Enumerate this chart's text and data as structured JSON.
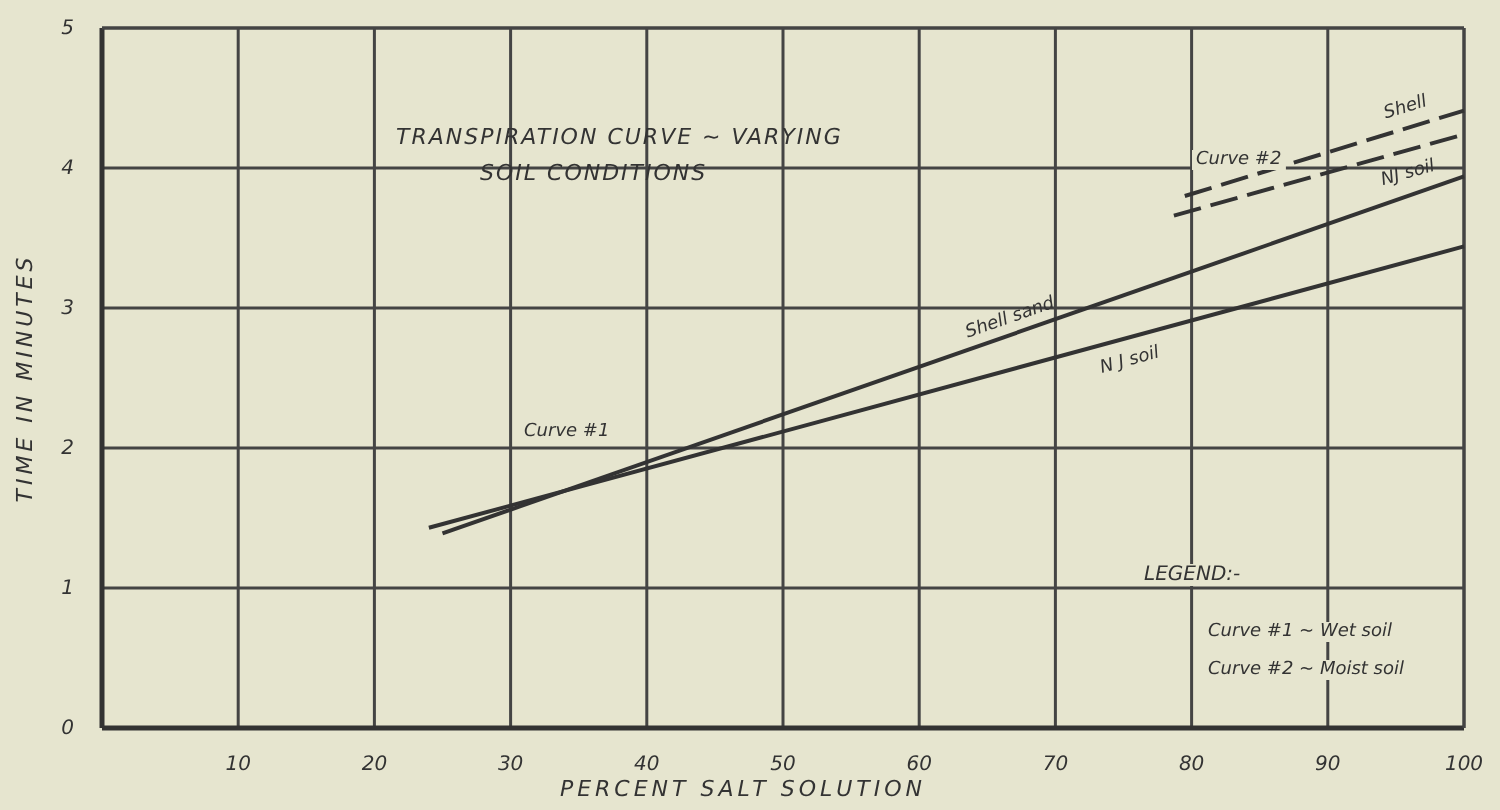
{
  "chart_data": {
    "type": "line",
    "title": "TRANSPIRATION CURVE ~ VARYING SOIL CONDITIONS",
    "xlabel": "PERCENT SALT SOLUTION",
    "ylabel": "TIME IN MINUTES",
    "xlim": [
      0,
      100
    ],
    "ylim": [
      0,
      5
    ],
    "xticks": [
      {
        "value": 0,
        "label": null
      },
      10,
      20,
      30,
      40,
      50,
      60,
      70,
      80,
      90,
      100
    ],
    "yticks": [
      0,
      1,
      2,
      3,
      4,
      5
    ],
    "grid": true,
    "series": [
      {
        "name": "Shell sand",
        "color": "#333333",
        "x": [
          25,
          100
        ],
        "values": [
          1.39,
          3.94
        ],
        "line_style": "solid"
      },
      {
        "name": "N J soil",
        "color": "#333333",
        "x": [
          24,
          100
        ],
        "values": [
          1.43,
          3.44
        ],
        "line_style": "solid"
      },
      {
        "name": "Shell",
        "color": "#333333",
        "x": [
          79.5,
          100
        ],
        "values": [
          3.8,
          4.41
        ],
        "line_style": "dashed"
      },
      {
        "name": "NJ soil",
        "color": "#333333",
        "x": [
          78.7,
          100
        ],
        "values": [
          3.66,
          4.24
        ],
        "line_style": "dashed"
      }
    ],
    "annotations": [
      "Curve #1",
      "Curve #2",
      "LEGEND:-",
      "Curve #1 ~ Wet soil",
      "Curve #2 ~ Moist soil"
    ]
  }
}
